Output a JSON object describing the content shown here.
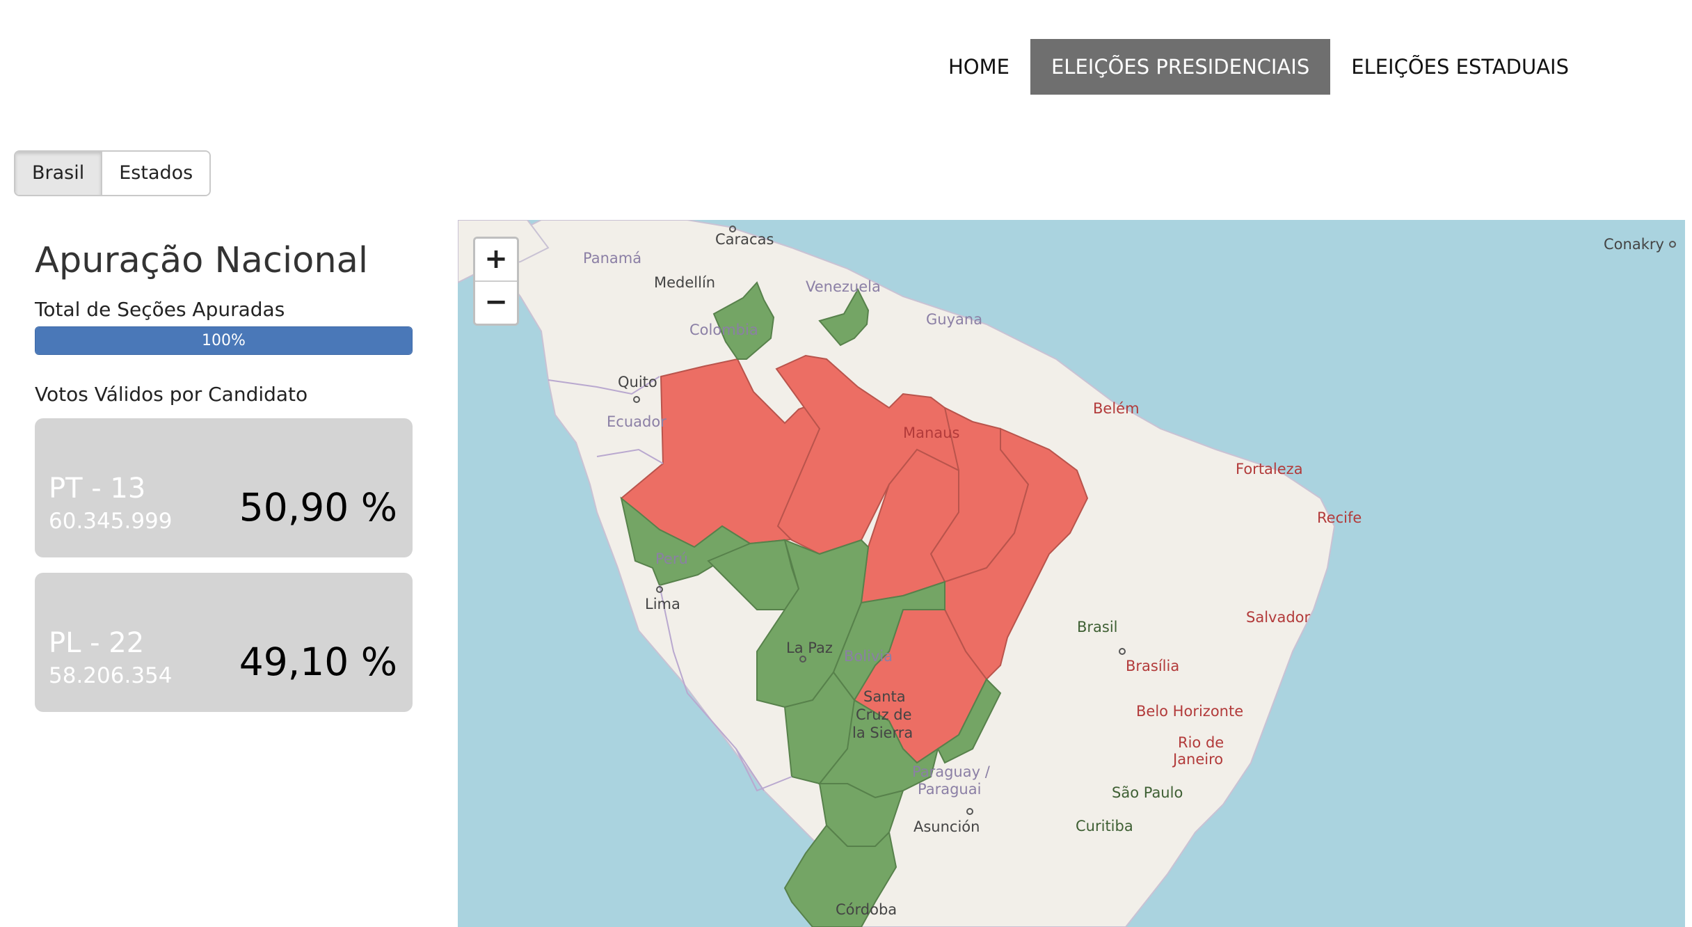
{
  "nav": {
    "home": "HOME",
    "presidenciais": "ELEIÇÕES PRESIDENCIAIS",
    "estaduais": "ELEIÇÕES ESTADUAIS"
  },
  "view_toggle": {
    "brasil": "Brasil",
    "estados": "Estados"
  },
  "panel": {
    "title": "Apuração Nacional",
    "progress_label": "Total de Seções Apuradas",
    "progress_text": "100%",
    "progress_value": 1.0,
    "votes_label": "Votos Válidos por Candidato",
    "candidates": [
      {
        "party": "PT - 13",
        "votes": "60.345.999",
        "percent": "50,90 %"
      },
      {
        "party": "PL - 22",
        "votes": "58.206.354",
        "percent": "49,10 %"
      }
    ]
  },
  "map": {
    "zoom_in": "+",
    "zoom_out": "−",
    "colors": {
      "PT": "#ec6e64",
      "PL": "#74a565",
      "land": "#f2efe9",
      "sea": "#aad3df"
    },
    "labels": {
      "caracas": "Caracas",
      "panama": "Panamá",
      "medellin": "Medellín",
      "venezuela": "Venezuela",
      "guyana": "Guyana",
      "colombia": "Colombia",
      "quito": "Quito",
      "ecuador": "Ecuador",
      "manaus": "Manaus",
      "belem": "Belém",
      "fortaleza": "Fortaleza",
      "recife": "Recife",
      "peru": "Perú",
      "lima": "Lima",
      "la_paz": "La Paz",
      "bolivia": "Bolivia",
      "santa": "Santa",
      "cruz_de": "Cruz de",
      "la_sierra": "la Sierra",
      "brasil": "Brasil",
      "brasilia": "Brasília",
      "salvador": "Salvador",
      "belo_horizonte": "Belo Horizonte",
      "rio_de": "Rio de",
      "janeiro": "Janeiro",
      "paraguay": "Paraguay /",
      "paraguai": "Paraguai",
      "asuncion": "Asunción",
      "sao_paulo": "São Paulo",
      "curitiba": "Curitiba",
      "cordoba": "Córdoba",
      "conakry": "Conakry"
    }
  }
}
